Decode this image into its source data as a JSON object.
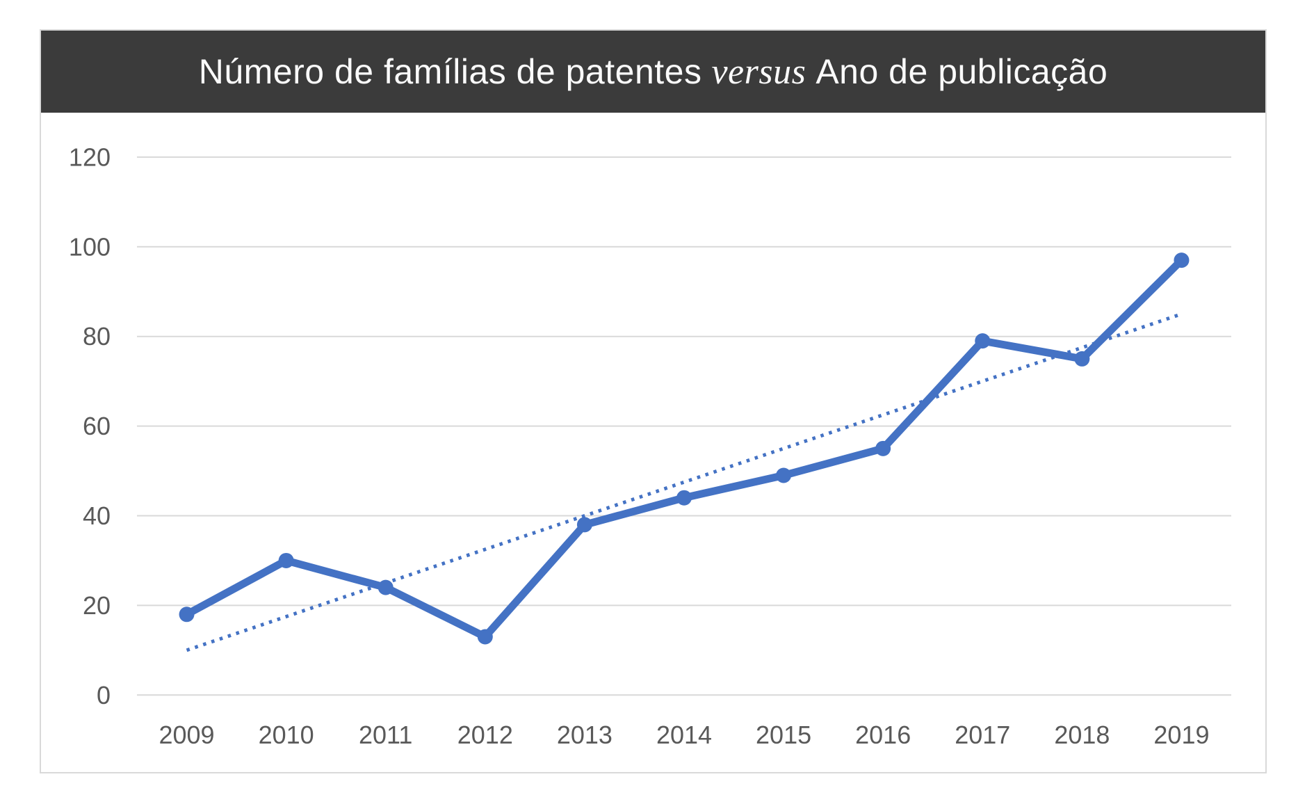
{
  "title": {
    "prefix": "Número de famílias de patentes",
    "italic": "versus",
    "suffix": "Ano de publicação"
  },
  "colors": {
    "title_bar_bg": "#3B3B3B",
    "title_text": "#FAFAFA",
    "series_line": "#4472C4",
    "trendline": "#4472C4",
    "gridline": "#D9D9D9",
    "tick_label": "#595959",
    "frame_border": "#D9D9D9",
    "background": "#FFFFFF"
  },
  "chart_data": {
    "type": "line",
    "title": "Número de famílias de patentes versus Ano de publicação",
    "categories": [
      "2009",
      "2010",
      "2011",
      "2012",
      "2013",
      "2014",
      "2015",
      "2016",
      "2017",
      "2018",
      "2019"
    ],
    "series": [
      {
        "name": "",
        "values": [
          18,
          30,
          24,
          13,
          38,
          44,
          49,
          55,
          79,
          75,
          97
        ],
        "style": "solid",
        "markers": "circle"
      }
    ],
    "trendline": {
      "type": "linear",
      "style": "dotted",
      "start_value": 10,
      "end_value": 85
    },
    "xlabel": "",
    "ylabel": "",
    "ylim": [
      0,
      120
    ],
    "ytick_step": 20,
    "yticks": [
      0,
      20,
      40,
      60,
      80,
      100,
      120
    ],
    "grid": "horizontal",
    "legend": "none"
  }
}
